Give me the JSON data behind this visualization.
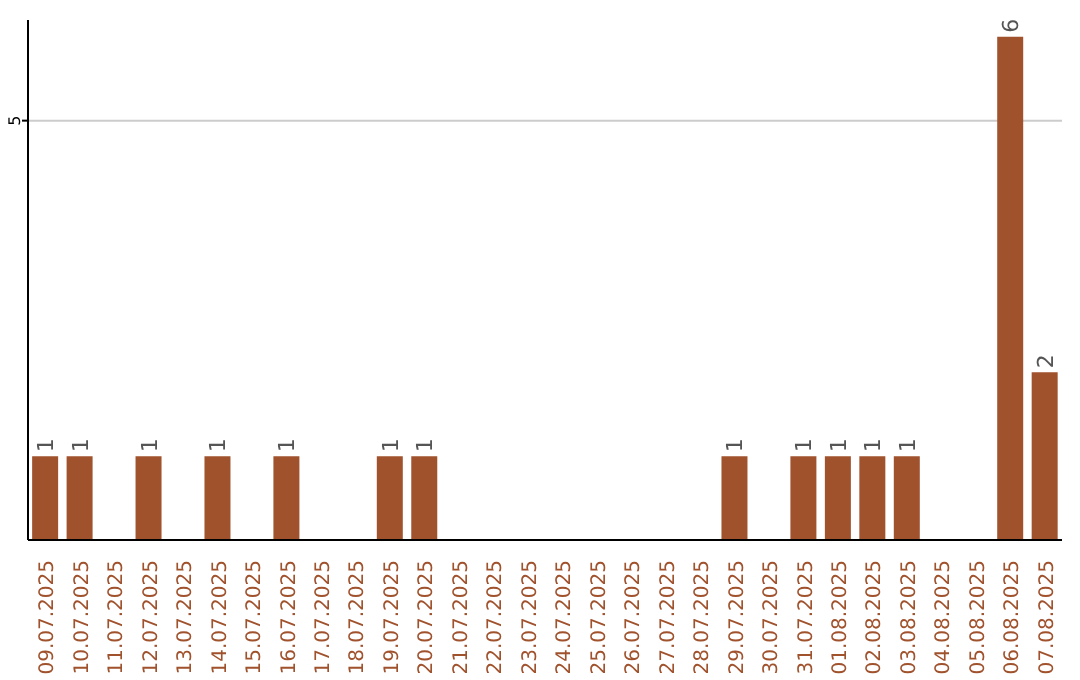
{
  "chart_data": {
    "type": "bar",
    "categories": [
      "09.07.2025",
      "10.07.2025",
      "11.07.2025",
      "12.07.2025",
      "13.07.2025",
      "14.07.2025",
      "15.07.2025",
      "16.07.2025",
      "17.07.2025",
      "18.07.2025",
      "19.07.2025",
      "20.07.2025",
      "21.07.2025",
      "22.07.2025",
      "23.07.2025",
      "24.07.2025",
      "25.07.2025",
      "26.07.2025",
      "27.07.2025",
      "28.07.2025",
      "29.07.2025",
      "30.07.2025",
      "31.07.2025",
      "01.08.2025",
      "02.08.2025",
      "03.08.2025",
      "04.08.2025",
      "05.08.2025",
      "06.08.2025",
      "07.08.2025"
    ],
    "values": [
      1,
      1,
      0,
      1,
      0,
      1,
      0,
      1,
      0,
      0,
      1,
      1,
      0,
      0,
      0,
      0,
      0,
      0,
      0,
      0,
      1,
      0,
      1,
      1,
      1,
      1,
      0,
      0,
      6,
      2
    ],
    "value_labels": [
      "1",
      "1",
      null,
      "1",
      null,
      "1",
      null,
      "1",
      null,
      null,
      "1",
      "1",
      null,
      null,
      null,
      null,
      null,
      null,
      null,
      null,
      "1",
      null,
      "1",
      "1",
      "1",
      "1",
      null,
      null,
      "6",
      "2"
    ],
    "color": "#a0522d",
    "ylim": [
      0,
      6.2
    ],
    "yticks": [
      5
    ],
    "grid": "y"
  }
}
